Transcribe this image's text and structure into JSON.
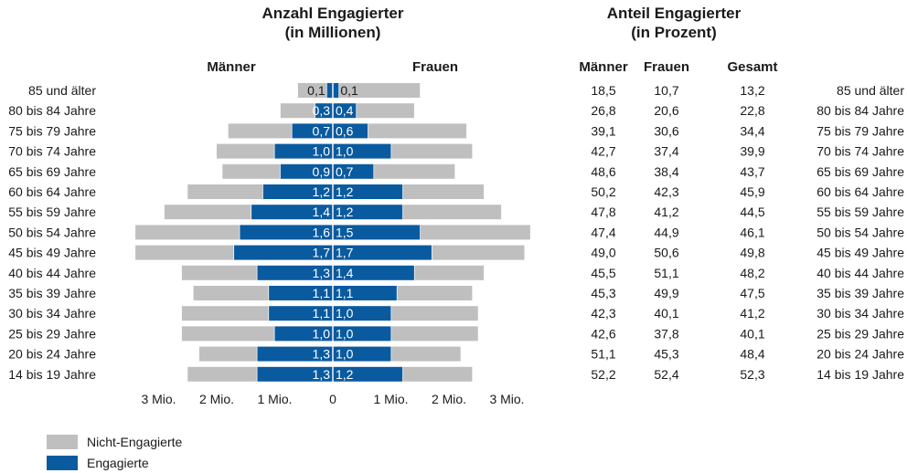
{
  "chart_data": [
    {
      "type": "bar",
      "orientation": "horizontal",
      "stacked": true,
      "mirrored": true,
      "title": "Anzahl Engagierter",
      "subtitle": "(in Millionen)",
      "categories": [
        "85 und älter",
        "80 bis 84 Jahre",
        "75 bis 79 Jahre",
        "70 bis 74 Jahre",
        "65 bis 69 Jahre",
        "60 bis 64 Jahre",
        "55 bis 59 Jahre",
        "50 bis 54 Jahre",
        "45 bis 49 Jahre",
        "40 bis 44 Jahre",
        "35 bis 39 Jahre",
        "30 bis 34 Jahre",
        "25 bis 29 Jahre",
        "20 bis 24 Jahre",
        "14 bis 19 Jahre"
      ],
      "groups": [
        "Männer",
        "Frauen"
      ],
      "series": [
        {
          "name": "Engagierte",
          "color": "#0a5a9f",
          "values": [
            [
              0.1,
              0.3,
              0.7,
              1.0,
              0.9,
              1.2,
              1.4,
              1.6,
              1.7,
              1.3,
              1.1,
              1.1,
              1.0,
              1.3,
              1.3
            ],
            [
              0.1,
              0.4,
              0.6,
              1.0,
              0.7,
              1.2,
              1.2,
              1.5,
              1.7,
              1.4,
              1.1,
              1.0,
              1.0,
              1.0,
              1.2
            ]
          ]
        },
        {
          "name": "Nicht-Engagierte",
          "color": "#bfbfbf",
          "values": [
            [
              0.5,
              0.6,
              1.1,
              1.0,
              1.0,
              1.3,
              1.5,
              1.8,
              1.7,
              1.3,
              1.3,
              1.5,
              1.6,
              1.0,
              1.2
            ],
            [
              1.4,
              1.0,
              1.7,
              1.4,
              1.4,
              1.4,
              1.7,
              1.9,
              1.6,
              1.2,
              1.3,
              1.5,
              1.5,
              1.2,
              1.2
            ]
          ]
        }
      ],
      "xlim": [
        -3,
        3
      ],
      "x_ticks": [
        -3,
        -2,
        -1,
        0,
        1,
        2,
        3
      ],
      "x_tick_labels": [
        "3 Mio.",
        "2 Mio.",
        "1 Mio.",
        "0",
        "1 Mio.",
        "2 Mio.",
        "3 Mio."
      ],
      "grid": false,
      "legend": {
        "position": "bottom-left"
      }
    },
    {
      "type": "table",
      "title": "Anteil Engagierter",
      "subtitle": "(in Prozent)",
      "columns": [
        "Männer",
        "Frauen",
        "Gesamt"
      ],
      "rows": [
        {
          "label": "85 und älter",
          "values": [
            18.5,
            10.7,
            13.2
          ]
        },
        {
          "label": "80 bis 84 Jahre",
          "values": [
            26.8,
            20.6,
            22.8
          ]
        },
        {
          "label": "75 bis 79 Jahre",
          "values": [
            39.1,
            30.6,
            34.4
          ]
        },
        {
          "label": "70 bis 74 Jahre",
          "values": [
            42.7,
            37.4,
            39.9
          ]
        },
        {
          "label": "65 bis 69 Jahre",
          "values": [
            48.6,
            38.4,
            43.7
          ]
        },
        {
          "label": "60 bis 64 Jahre",
          "values": [
            50.2,
            42.3,
            45.9
          ]
        },
        {
          "label": "55 bis 59 Jahre",
          "values": [
            47.8,
            41.2,
            44.5
          ]
        },
        {
          "label": "50 bis 54 Jahre",
          "values": [
            47.4,
            44.9,
            46.1
          ]
        },
        {
          "label": "45 bis 49 Jahre",
          "values": [
            49.0,
            50.6,
            49.8
          ]
        },
        {
          "label": "40 bis 44 Jahre",
          "values": [
            45.5,
            51.1,
            48.2
          ]
        },
        {
          "label": "35 bis 39 Jahre",
          "values": [
            45.3,
            49.9,
            47.5
          ]
        },
        {
          "label": "30 bis 34 Jahre",
          "values": [
            42.3,
            40.1,
            41.2
          ]
        },
        {
          "label": "25 bis 29 Jahre",
          "values": [
            42.6,
            37.8,
            40.1
          ]
        },
        {
          "label": "20 bis 24 Jahre",
          "values": [
            51.1,
            45.3,
            48.4
          ]
        },
        {
          "label": "14 bis 19 Jahre",
          "values": [
            52.2,
            52.4,
            52.3
          ]
        }
      ]
    }
  ]
}
